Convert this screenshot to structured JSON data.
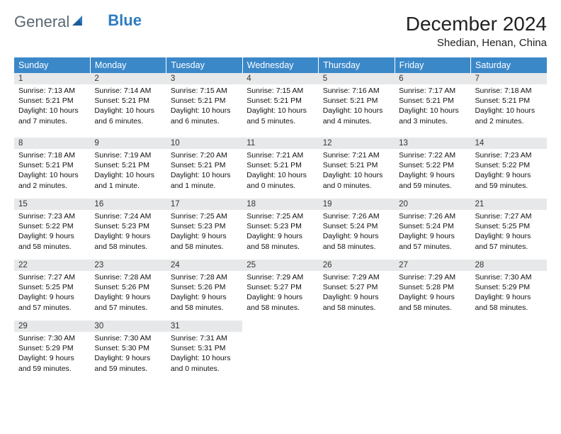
{
  "logo": {
    "text1": "General",
    "text2": "Blue"
  },
  "title": "December 2024",
  "location": "Shedian, Henan, China",
  "columns": [
    "Sunday",
    "Monday",
    "Tuesday",
    "Wednesday",
    "Thursday",
    "Friday",
    "Saturday"
  ],
  "colors": {
    "header_bg": "#3b88c9",
    "header_text": "#ffffff",
    "daynum_bg": "#e7e8e9",
    "rule": "#2e6fa8",
    "logo_gray": "#5a6770",
    "logo_blue": "#2e7cc0"
  },
  "weeks": [
    [
      {
        "n": "1",
        "sr": "Sunrise: 7:13 AM",
        "ss": "Sunset: 5:21 PM",
        "dl1": "Daylight: 10 hours",
        "dl2": "and 7 minutes."
      },
      {
        "n": "2",
        "sr": "Sunrise: 7:14 AM",
        "ss": "Sunset: 5:21 PM",
        "dl1": "Daylight: 10 hours",
        "dl2": "and 6 minutes."
      },
      {
        "n": "3",
        "sr": "Sunrise: 7:15 AM",
        "ss": "Sunset: 5:21 PM",
        "dl1": "Daylight: 10 hours",
        "dl2": "and 6 minutes."
      },
      {
        "n": "4",
        "sr": "Sunrise: 7:15 AM",
        "ss": "Sunset: 5:21 PM",
        "dl1": "Daylight: 10 hours",
        "dl2": "and 5 minutes."
      },
      {
        "n": "5",
        "sr": "Sunrise: 7:16 AM",
        "ss": "Sunset: 5:21 PM",
        "dl1": "Daylight: 10 hours",
        "dl2": "and 4 minutes."
      },
      {
        "n": "6",
        "sr": "Sunrise: 7:17 AM",
        "ss": "Sunset: 5:21 PM",
        "dl1": "Daylight: 10 hours",
        "dl2": "and 3 minutes."
      },
      {
        "n": "7",
        "sr": "Sunrise: 7:18 AM",
        "ss": "Sunset: 5:21 PM",
        "dl1": "Daylight: 10 hours",
        "dl2": "and 2 minutes."
      }
    ],
    [
      {
        "n": "8",
        "sr": "Sunrise: 7:18 AM",
        "ss": "Sunset: 5:21 PM",
        "dl1": "Daylight: 10 hours",
        "dl2": "and 2 minutes."
      },
      {
        "n": "9",
        "sr": "Sunrise: 7:19 AM",
        "ss": "Sunset: 5:21 PM",
        "dl1": "Daylight: 10 hours",
        "dl2": "and 1 minute."
      },
      {
        "n": "10",
        "sr": "Sunrise: 7:20 AM",
        "ss": "Sunset: 5:21 PM",
        "dl1": "Daylight: 10 hours",
        "dl2": "and 1 minute."
      },
      {
        "n": "11",
        "sr": "Sunrise: 7:21 AM",
        "ss": "Sunset: 5:21 PM",
        "dl1": "Daylight: 10 hours",
        "dl2": "and 0 minutes."
      },
      {
        "n": "12",
        "sr": "Sunrise: 7:21 AM",
        "ss": "Sunset: 5:21 PM",
        "dl1": "Daylight: 10 hours",
        "dl2": "and 0 minutes."
      },
      {
        "n": "13",
        "sr": "Sunrise: 7:22 AM",
        "ss": "Sunset: 5:22 PM",
        "dl1": "Daylight: 9 hours",
        "dl2": "and 59 minutes."
      },
      {
        "n": "14",
        "sr": "Sunrise: 7:23 AM",
        "ss": "Sunset: 5:22 PM",
        "dl1": "Daylight: 9 hours",
        "dl2": "and 59 minutes."
      }
    ],
    [
      {
        "n": "15",
        "sr": "Sunrise: 7:23 AM",
        "ss": "Sunset: 5:22 PM",
        "dl1": "Daylight: 9 hours",
        "dl2": "and 58 minutes."
      },
      {
        "n": "16",
        "sr": "Sunrise: 7:24 AM",
        "ss": "Sunset: 5:23 PM",
        "dl1": "Daylight: 9 hours",
        "dl2": "and 58 minutes."
      },
      {
        "n": "17",
        "sr": "Sunrise: 7:25 AM",
        "ss": "Sunset: 5:23 PM",
        "dl1": "Daylight: 9 hours",
        "dl2": "and 58 minutes."
      },
      {
        "n": "18",
        "sr": "Sunrise: 7:25 AM",
        "ss": "Sunset: 5:23 PM",
        "dl1": "Daylight: 9 hours",
        "dl2": "and 58 minutes."
      },
      {
        "n": "19",
        "sr": "Sunrise: 7:26 AM",
        "ss": "Sunset: 5:24 PM",
        "dl1": "Daylight: 9 hours",
        "dl2": "and 58 minutes."
      },
      {
        "n": "20",
        "sr": "Sunrise: 7:26 AM",
        "ss": "Sunset: 5:24 PM",
        "dl1": "Daylight: 9 hours",
        "dl2": "and 57 minutes."
      },
      {
        "n": "21",
        "sr": "Sunrise: 7:27 AM",
        "ss": "Sunset: 5:25 PM",
        "dl1": "Daylight: 9 hours",
        "dl2": "and 57 minutes."
      }
    ],
    [
      {
        "n": "22",
        "sr": "Sunrise: 7:27 AM",
        "ss": "Sunset: 5:25 PM",
        "dl1": "Daylight: 9 hours",
        "dl2": "and 57 minutes."
      },
      {
        "n": "23",
        "sr": "Sunrise: 7:28 AM",
        "ss": "Sunset: 5:26 PM",
        "dl1": "Daylight: 9 hours",
        "dl2": "and 57 minutes."
      },
      {
        "n": "24",
        "sr": "Sunrise: 7:28 AM",
        "ss": "Sunset: 5:26 PM",
        "dl1": "Daylight: 9 hours",
        "dl2": "and 58 minutes."
      },
      {
        "n": "25",
        "sr": "Sunrise: 7:29 AM",
        "ss": "Sunset: 5:27 PM",
        "dl1": "Daylight: 9 hours",
        "dl2": "and 58 minutes."
      },
      {
        "n": "26",
        "sr": "Sunrise: 7:29 AM",
        "ss": "Sunset: 5:27 PM",
        "dl1": "Daylight: 9 hours",
        "dl2": "and 58 minutes."
      },
      {
        "n": "27",
        "sr": "Sunrise: 7:29 AM",
        "ss": "Sunset: 5:28 PM",
        "dl1": "Daylight: 9 hours",
        "dl2": "and 58 minutes."
      },
      {
        "n": "28",
        "sr": "Sunrise: 7:30 AM",
        "ss": "Sunset: 5:29 PM",
        "dl1": "Daylight: 9 hours",
        "dl2": "and 58 minutes."
      }
    ],
    [
      {
        "n": "29",
        "sr": "Sunrise: 7:30 AM",
        "ss": "Sunset: 5:29 PM",
        "dl1": "Daylight: 9 hours",
        "dl2": "and 59 minutes."
      },
      {
        "n": "30",
        "sr": "Sunrise: 7:30 AM",
        "ss": "Sunset: 5:30 PM",
        "dl1": "Daylight: 9 hours",
        "dl2": "and 59 minutes."
      },
      {
        "n": "31",
        "sr": "Sunrise: 7:31 AM",
        "ss": "Sunset: 5:31 PM",
        "dl1": "Daylight: 10 hours",
        "dl2": "and 0 minutes."
      },
      null,
      null,
      null,
      null
    ]
  ]
}
